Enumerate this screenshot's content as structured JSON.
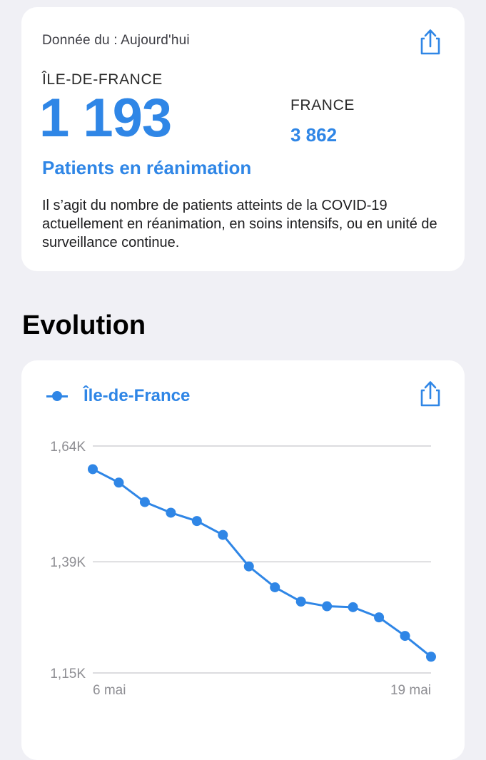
{
  "summary": {
    "date_label": "Donnée du : Aujourd'hui",
    "region_name": "ÎLE-DE-FRANCE",
    "region_value": "1 193",
    "country_name": "FRANCE",
    "country_value": "3 862",
    "metric_label": "Patients en réanimation",
    "description": "Il s’agit du nombre de patients atteints de la COVID-19 actuellement en réanimation, en soins intensifs, ou en unité de surveillance continue."
  },
  "section_title": "Evolution",
  "icons": {
    "share": "share-icon"
  },
  "colors": {
    "accent": "#2f86e6",
    "background": "#f0f0f5",
    "card": "#ffffff",
    "grid": "#c7c7cc"
  },
  "chart_data": {
    "type": "line",
    "series": [
      {
        "name": "Île-de-France",
        "values": [
          1590,
          1561,
          1519,
          1496,
          1478,
          1448,
          1380,
          1335,
          1304,
          1294,
          1292,
          1270,
          1230,
          1185
        ]
      }
    ],
    "x_labels": [
      "6 mai",
      "19 mai"
    ],
    "y_ticks": [
      {
        "value": 1640,
        "label": "1,64K"
      },
      {
        "value": 1390,
        "label": "1,39K"
      },
      {
        "value": 1150,
        "label": "1,15K"
      }
    ],
    "ylim": [
      1150,
      1640
    ],
    "grid": true,
    "legend": "top-left"
  }
}
